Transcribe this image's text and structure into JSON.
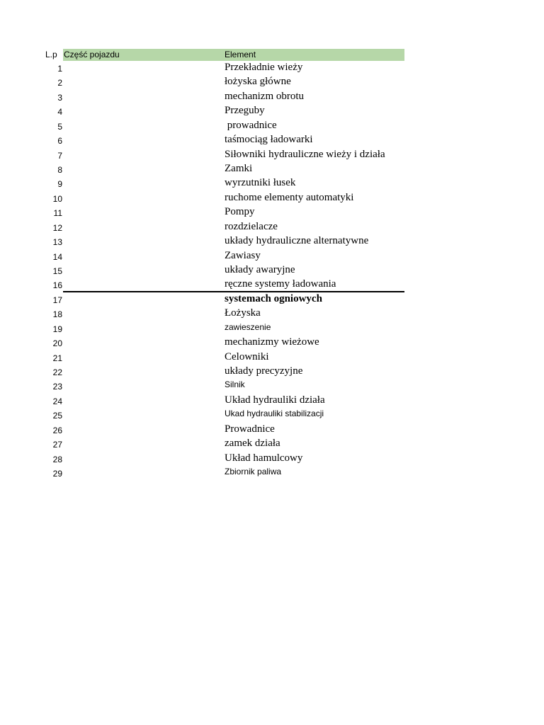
{
  "header": {
    "lp": "L.p",
    "part": "Część pojazdu",
    "element": "Element",
    "header_color": "#b6d7a8"
  },
  "rows": [
    {
      "n": "1",
      "element": "Przekładnie wieży",
      "style": "serif"
    },
    {
      "n": "2",
      "element": "łożyska główne",
      "style": "serif"
    },
    {
      "n": "3",
      "element": "mechanizm obrotu",
      "style": "serif"
    },
    {
      "n": "4",
      "element": "Przeguby",
      "style": "serif"
    },
    {
      "n": "5",
      "element": " prowadnice",
      "style": "serif"
    },
    {
      "n": "6",
      "element": "taśmociąg ładowarki",
      "style": "serif"
    },
    {
      "n": "7",
      "element": "Siłowniki hydrauliczne wieży i działa",
      "style": "serif"
    },
    {
      "n": "8",
      "element": "Zamki",
      "style": "serif"
    },
    {
      "n": "9",
      "element": "wyrzutniki łusek",
      "style": "serif"
    },
    {
      "n": "10",
      "element": "ruchome elementy automatyki",
      "style": "serif"
    },
    {
      "n": "11",
      "element": "Pompy",
      "style": "serif"
    },
    {
      "n": "12",
      "element": "rozdzielacze",
      "style": "serif"
    },
    {
      "n": "13",
      "element": "układy hydrauliczne alternatywne",
      "style": "serif"
    },
    {
      "n": "14",
      "element": "Zawiasy",
      "style": "serif"
    },
    {
      "n": "15",
      "element": "układy awaryjne",
      "style": "serif"
    },
    {
      "n": "16",
      "element": "ręczne systemy ładowania",
      "style": "serif"
    },
    {
      "n": "17",
      "element": "systemach ogniowych",
      "style": "bold"
    },
    {
      "n": "18",
      "element": "Łożyska",
      "style": "serif"
    },
    {
      "n": "19",
      "element": "zawieszenie",
      "style": "sans"
    },
    {
      "n": "20",
      "element": "mechanizmy wieżowe",
      "style": "serif"
    },
    {
      "n": "21",
      "element": "Celowniki",
      "style": "serif"
    },
    {
      "n": "22",
      "element": "układy precyzyjne",
      "style": "serif"
    },
    {
      "n": "23",
      "element": "Silnik",
      "style": "sans"
    },
    {
      "n": "24",
      "element": "Układ hydrauliki działa",
      "style": "serif"
    },
    {
      "n": "25",
      "element": "Ukad hydrauliki stabilizacji",
      "style": "sans"
    },
    {
      "n": "26",
      "element": "Prowadnice",
      "style": "serif"
    },
    {
      "n": "27",
      "element": "zamek działa",
      "style": "serif"
    },
    {
      "n": "28",
      "element": "Układ hamulcowy",
      "style": "serif"
    },
    {
      "n": "29",
      "element": "Zbiornik paliwa",
      "style": "sans"
    }
  ]
}
